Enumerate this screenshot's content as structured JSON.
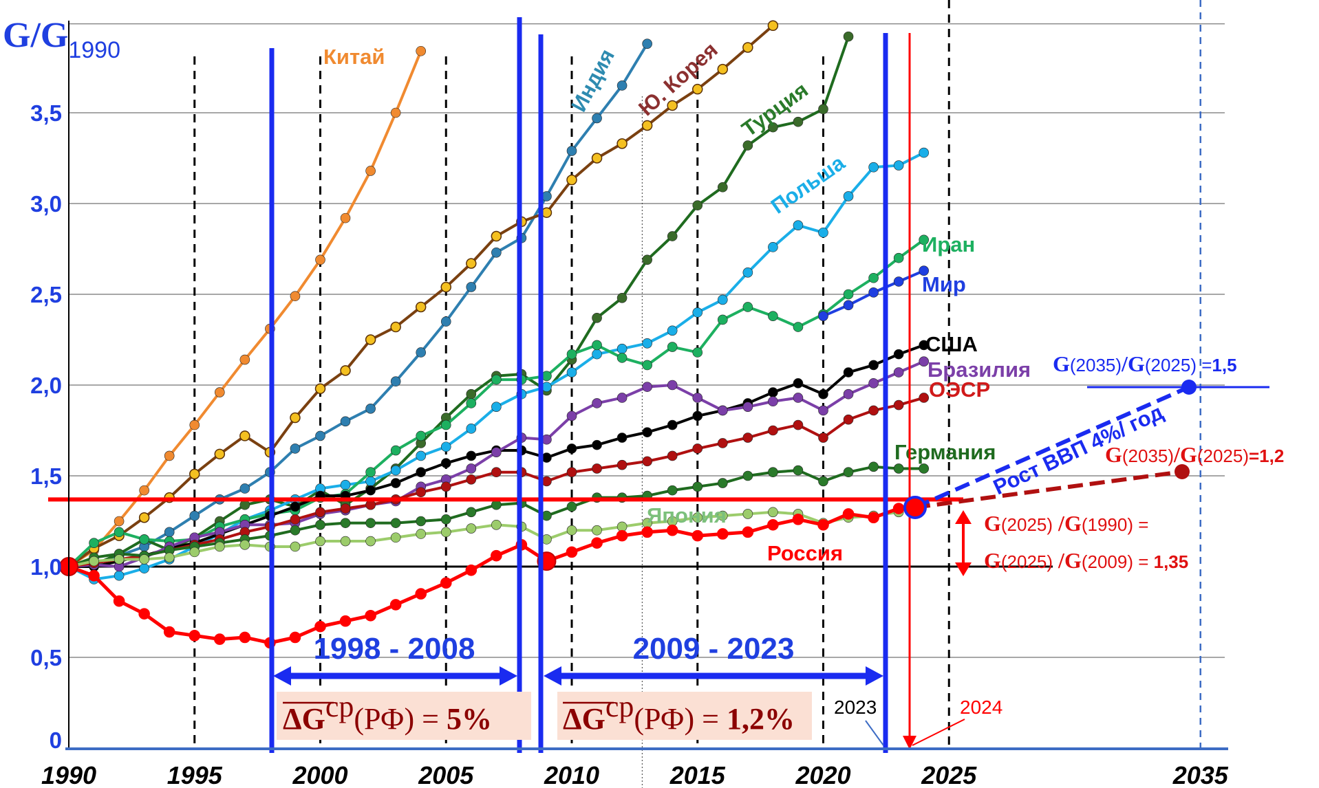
{
  "chart_data": {
    "type": "line",
    "ylabel": "G/G",
    "ylabel_sub": "1990",
    "ylim": [
      0,
      4.0
    ],
    "xlim": [
      1990,
      2037
    ],
    "yticks": [
      {
        "v": 0,
        "label": "0"
      },
      {
        "v": 0.5,
        "label": "0,5"
      },
      {
        "v": 1.0,
        "label": "1,0"
      },
      {
        "v": 1.5,
        "label": "1,5"
      },
      {
        "v": 2.0,
        "label": "2,0"
      },
      {
        "v": 2.5,
        "label": "2,5"
      },
      {
        "v": 3.0,
        "label": "3,0"
      },
      {
        "v": 3.5,
        "label": "3,5"
      }
    ],
    "xticks": [
      {
        "v": 1990,
        "label": "1990"
      },
      {
        "v": 1995,
        "label": "1995"
      },
      {
        "v": 2000,
        "label": "2000"
      },
      {
        "v": 2005,
        "label": "2005"
      },
      {
        "v": 2010,
        "label": "2010"
      },
      {
        "v": 2015,
        "label": "2015"
      },
      {
        "v": 2020,
        "label": "2020"
      },
      {
        "v": 2025,
        "label": "2025"
      },
      {
        "v": 2035,
        "label": "2035"
      }
    ],
    "grid": true,
    "series": [
      {
        "name": "Китай",
        "color": "#f08a30",
        "dotFill": "#f08a30",
        "labelColor": "#f08a30",
        "x": [
          1991,
          1992,
          1993,
          1994,
          1995,
          1996,
          1997,
          1998,
          1999,
          2000,
          2001,
          2002,
          2003,
          2004
        ],
        "y": [
          1.09,
          1.25,
          1.42,
          1.61,
          1.78,
          1.96,
          2.14,
          2.31,
          2.49,
          2.69,
          2.92,
          3.18,
          3.5,
          3.84
        ]
      },
      {
        "name": "Индия",
        "color": "#2e7fb0",
        "dotFill": "#2e7fb0",
        "labelColor": "#2e8bb0",
        "x": [
          1991,
          1992,
          1993,
          1994,
          1995,
          1996,
          1997,
          1998,
          1999,
          2000,
          2001,
          2002,
          2003,
          2004,
          2005,
          2006,
          2007,
          2008,
          2009,
          2010,
          2011,
          2012,
          2013
        ],
        "y": [
          1.01,
          1.06,
          1.11,
          1.19,
          1.28,
          1.37,
          1.43,
          1.52,
          1.65,
          1.72,
          1.8,
          1.87,
          2.02,
          2.18,
          2.35,
          2.54,
          2.73,
          2.81,
          3.04,
          3.29,
          3.47,
          3.65,
          3.88
        ]
      },
      {
        "name": "Ю. Корея",
        "color": "#7a4010",
        "dotFill": "#f4c020",
        "labelColor": "#8b3030",
        "x": [
          1991,
          1992,
          1993,
          1994,
          1995,
          1996,
          1997,
          1998,
          1999,
          2000,
          2001,
          2002,
          2003,
          2004,
          2005,
          2006,
          2007,
          2008,
          2009,
          2010,
          2011,
          2012,
          2013,
          2014,
          2015,
          2016,
          2017,
          2018
        ],
        "y": [
          1.1,
          1.17,
          1.27,
          1.38,
          1.51,
          1.62,
          1.72,
          1.63,
          1.82,
          1.98,
          2.08,
          2.25,
          2.32,
          2.43,
          2.54,
          2.67,
          2.82,
          2.9,
          2.95,
          3.13,
          3.25,
          3.33,
          3.43,
          3.54,
          3.63,
          3.74,
          3.86,
          3.98
        ]
      },
      {
        "name": "Турция",
        "color": "#1f6b1f",
        "dotFill": "#3a6b2a",
        "labelColor": "#2a7a2a",
        "x": [
          1991,
          1992,
          1993,
          1994,
          1995,
          1996,
          1997,
          1998,
          1999,
          2000,
          2001,
          2002,
          2003,
          2004,
          2005,
          2006,
          2007,
          2008,
          2009,
          2010,
          2011,
          2012,
          2013,
          2014,
          2015,
          2016,
          2017,
          2018,
          2019,
          2020,
          2021
        ],
        "y": [
          1.01,
          1.07,
          1.15,
          1.09,
          1.16,
          1.25,
          1.34,
          1.37,
          1.33,
          1.42,
          1.34,
          1.43,
          1.54,
          1.68,
          1.82,
          1.95,
          2.05,
          2.06,
          1.97,
          2.14,
          2.37,
          2.48,
          2.69,
          2.82,
          2.99,
          3.09,
          3.32,
          3.42,
          3.45,
          3.52,
          3.92
        ]
      },
      {
        "name": "Польша",
        "color": "#1aaee8",
        "dotFill": "#1aaee8",
        "labelColor": "#1aaee8",
        "x": [
          1991,
          1992,
          1993,
          1994,
          1995,
          1996,
          1997,
          1998,
          1999,
          2000,
          2001,
          2002,
          2003,
          2004,
          2005,
          2006,
          2007,
          2008,
          2009,
          2010,
          2011,
          2012,
          2013,
          2014,
          2015,
          2016,
          2017,
          2018,
          2019,
          2020,
          2021,
          2022,
          2023,
          2024
        ],
        "y": [
          0.93,
          0.95,
          0.99,
          1.04,
          1.11,
          1.18,
          1.26,
          1.31,
          1.37,
          1.43,
          1.45,
          1.47,
          1.53,
          1.61,
          1.66,
          1.76,
          1.88,
          1.95,
          1.99,
          2.07,
          2.17,
          2.2,
          2.23,
          2.3,
          2.4,
          2.47,
          2.62,
          2.76,
          2.88,
          2.84,
          3.04,
          3.2,
          3.21,
          3.28
        ]
      },
      {
        "name": "Иран",
        "color": "#1db060",
        "dotFill": "#1db060",
        "labelColor": "#1db060",
        "x": [
          1991,
          1992,
          1993,
          1994,
          1995,
          1996,
          1997,
          1998,
          1999,
          2000,
          2001,
          2002,
          2003,
          2004,
          2005,
          2006,
          2007,
          2008,
          2009,
          2010,
          2011,
          2012,
          2013,
          2014,
          2015,
          2016,
          2017,
          2018,
          2019,
          2020,
          2021,
          2022,
          2023,
          2024
        ],
        "y": [
          1.13,
          1.19,
          1.15,
          1.14,
          1.15,
          1.22,
          1.26,
          1.29,
          1.31,
          1.38,
          1.4,
          1.52,
          1.64,
          1.72,
          1.78,
          1.9,
          2.03,
          2.03,
          2.05,
          2.17,
          2.22,
          2.15,
          2.11,
          2.21,
          2.18,
          2.36,
          2.43,
          2.38,
          2.32,
          2.39,
          2.5,
          2.59,
          2.7,
          2.8
        ]
      },
      {
        "name": "Мир",
        "color": "#1f3fe0",
        "dotFill": "#1f3fe0",
        "labelColor": "#1f3fe0",
        "x": [
          2020,
          2021,
          2022,
          2023,
          2024
        ],
        "y": [
          2.38,
          2.44,
          2.51,
          2.57,
          2.63
        ]
      },
      {
        "name": "США",
        "color": "#000000",
        "dotFill": "#000000",
        "labelColor": "#000000",
        "x": [
          1991,
          1992,
          1993,
          1994,
          1995,
          1996,
          1997,
          1998,
          1999,
          2000,
          2001,
          2002,
          2003,
          2004,
          2005,
          2006,
          2007,
          2008,
          2009,
          2010,
          2011,
          2012,
          2013,
          2014,
          2015,
          2016,
          2017,
          2018,
          2019,
          2020,
          2021,
          2022,
          2023,
          2024
        ],
        "y": [
          1.0,
          1.03,
          1.06,
          1.1,
          1.13,
          1.18,
          1.23,
          1.28,
          1.33,
          1.39,
          1.39,
          1.42,
          1.46,
          1.52,
          1.57,
          1.61,
          1.64,
          1.64,
          1.6,
          1.65,
          1.67,
          1.71,
          1.74,
          1.78,
          1.83,
          1.86,
          1.9,
          1.96,
          2.01,
          1.95,
          2.07,
          2.11,
          2.17,
          2.22
        ]
      },
      {
        "name": "Бразилия",
        "color": "#7b3fa8",
        "dotFill": "#7b3fa8",
        "labelColor": "#7b3fa8",
        "x": [
          1991,
          1992,
          1993,
          1994,
          1995,
          1996,
          1997,
          1998,
          1999,
          2000,
          2001,
          2002,
          2003,
          2004,
          2005,
          2006,
          2007,
          2008,
          2009,
          2010,
          2011,
          2012,
          2013,
          2014,
          2015,
          2016,
          2017,
          2018,
          2019,
          2020,
          2021,
          2022,
          2023,
          2024
        ],
        "y": [
          1.01,
          1.0,
          1.05,
          1.11,
          1.16,
          1.19,
          1.23,
          1.23,
          1.24,
          1.29,
          1.31,
          1.34,
          1.36,
          1.44,
          1.48,
          1.54,
          1.63,
          1.71,
          1.7,
          1.83,
          1.9,
          1.93,
          1.99,
          2.0,
          1.93,
          1.86,
          1.88,
          1.91,
          1.93,
          1.86,
          1.95,
          2.01,
          2.07,
          2.13
        ]
      },
      {
        "name": "ОЭСР",
        "color": "#b01010",
        "dotFill": "#b01010",
        "labelColor": "#d01a1a",
        "x": [
          1991,
          1992,
          1993,
          1994,
          1995,
          1996,
          1997,
          1998,
          1999,
          2000,
          2001,
          2002,
          2003,
          2004,
          2005,
          2006,
          2007,
          2008,
          2009,
          2010,
          2011,
          2012,
          2013,
          2014,
          2015,
          2016,
          2017,
          2018,
          2019,
          2020,
          2021,
          2022,
          2023,
          2024
        ],
        "y": [
          1.02,
          1.04,
          1.06,
          1.09,
          1.12,
          1.15,
          1.19,
          1.22,
          1.26,
          1.3,
          1.32,
          1.34,
          1.37,
          1.41,
          1.44,
          1.48,
          1.52,
          1.52,
          1.47,
          1.52,
          1.54,
          1.56,
          1.58,
          1.61,
          1.65,
          1.68,
          1.71,
          1.75,
          1.78,
          1.71,
          1.81,
          1.86,
          1.89,
          1.93
        ]
      },
      {
        "name": "Германия",
        "color": "#1f6b1f",
        "dotFill": "#2a7a2a",
        "labelColor": "#1f6b1f",
        "x": [
          1991,
          1992,
          1993,
          1994,
          1995,
          1996,
          1997,
          1998,
          1999,
          2000,
          2001,
          2002,
          2003,
          2004,
          2005,
          2006,
          2007,
          2008,
          2009,
          2010,
          2011,
          2012,
          2013,
          2014,
          2015,
          2016,
          2017,
          2018,
          2019,
          2020,
          2021,
          2022,
          2023,
          2024
        ],
        "y": [
          1.05,
          1.07,
          1.06,
          1.09,
          1.11,
          1.13,
          1.15,
          1.17,
          1.2,
          1.23,
          1.24,
          1.24,
          1.24,
          1.25,
          1.26,
          1.3,
          1.34,
          1.35,
          1.28,
          1.33,
          1.38,
          1.38,
          1.39,
          1.42,
          1.44,
          1.46,
          1.5,
          1.52,
          1.53,
          1.47,
          1.52,
          1.55,
          1.54,
          1.54
        ]
      },
      {
        "name": "Япония",
        "color": "#9ccc6b",
        "dotFill": "#9ccc6b",
        "labelColor": "#7cc07c",
        "x": [
          1991,
          1992,
          1993,
          1994,
          1995,
          1996,
          1997,
          1998,
          1999,
          2000,
          2001,
          2002,
          2003,
          2004,
          2005,
          2006,
          2007,
          2008,
          2009,
          2010,
          2011,
          2012,
          2013,
          2014,
          2015,
          2016,
          2017,
          2018,
          2019,
          2020,
          2021,
          2022,
          2023
        ],
        "y": [
          1.03,
          1.04,
          1.04,
          1.05,
          1.08,
          1.11,
          1.12,
          1.11,
          1.11,
          1.14,
          1.14,
          1.14,
          1.16,
          1.18,
          1.19,
          1.21,
          1.23,
          1.22,
          1.15,
          1.2,
          1.2,
          1.22,
          1.24,
          1.25,
          1.27,
          1.28,
          1.29,
          1.3,
          1.29,
          1.24,
          1.27,
          1.28,
          1.3
        ]
      },
      {
        "name": "Россия",
        "color": "#ff0000",
        "dotFill": "#ff0000",
        "labelColor": "#ff0000",
        "x": [
          1991,
          1992,
          1993,
          1994,
          1995,
          1996,
          1997,
          1998,
          1999,
          2000,
          2001,
          2002,
          2003,
          2004,
          2005,
          2006,
          2007,
          2008,
          2009,
          2010,
          2011,
          2012,
          2013,
          2014,
          2015,
          2016,
          2017,
          2018,
          2019,
          2020,
          2021,
          2022,
          2023
        ],
        "y": [
          0.95,
          0.81,
          0.74,
          0.64,
          0.62,
          0.6,
          0.61,
          0.58,
          0.61,
          0.67,
          0.7,
          0.73,
          0.79,
          0.85,
          0.91,
          0.98,
          1.06,
          1.12,
          1.03,
          1.08,
          1.13,
          1.17,
          1.19,
          1.2,
          1.17,
          1.18,
          1.19,
          1.23,
          1.26,
          1.23,
          1.29,
          1.27,
          1.32
        ]
      }
    ],
    "annotations": {
      "period1": "1998 - 2008",
      "period2": "2009 - 2023",
      "formula1_value": "5%",
      "formula2_value": "1,2%",
      "formula_delta": "ΔG",
      "formula_sup": "ср",
      "formula_arg": "(РФ) =",
      "year_2023": "2023",
      "year_2024": "2024",
      "growth_text": "Рост ВВП 4%/ год",
      "ratio_blue_main": "G",
      "ratio_blue_parts": [
        "(2035)",
        "/",
        "G",
        "(2025) =",
        "1,5"
      ],
      "ratio_red_parts": [
        "G",
        "(2035)",
        "/",
        "G",
        "(2025)",
        "=1,2"
      ],
      "ratio_lower_line1": [
        "G",
        "(2025)",
        " /",
        "G",
        "(1990) ="
      ],
      "ratio_lower_line2": [
        "G",
        "(2025)",
        " /",
        "G",
        "(2009)",
        " = ",
        "1,35"
      ]
    }
  }
}
